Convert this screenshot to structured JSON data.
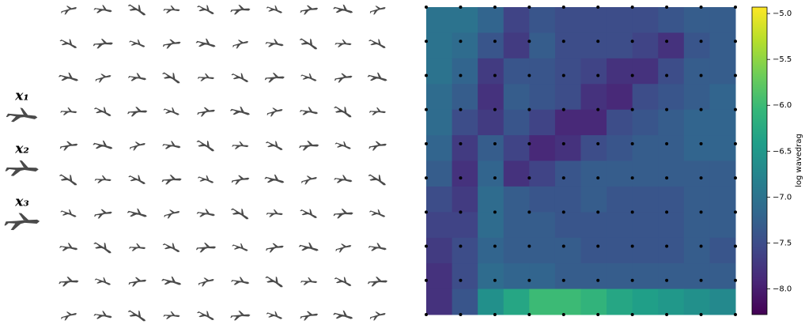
{
  "chart_data": {
    "type": "heatmap",
    "colormap": "viridis",
    "colorbar_label": "log wavedrag",
    "clim": [
      -8.28,
      -4.93
    ],
    "cticks": [
      {
        "value": -5,
        "label": "−5.0"
      },
      {
        "value": -5.5,
        "label": "−5.5"
      },
      {
        "value": -6,
        "label": "−6.0"
      },
      {
        "value": -6.5,
        "label": "−6.5"
      },
      {
        "value": -7,
        "label": "−7.0"
      },
      {
        "value": -7.5,
        "label": "−7.5"
      },
      {
        "value": -8,
        "label": "−8.0"
      }
    ],
    "sample_labels": [
      "x₁",
      "x₂",
      "x₃"
    ],
    "z": [
      [
        -7.0,
        -7.0,
        -7.2,
        -7.6,
        -7.4,
        -7.5,
        -7.5,
        -7.5,
        -7.5,
        -7.4,
        -7.3,
        -7.3
      ],
      [
        -7.0,
        -7.1,
        -7.4,
        -7.7,
        -7.3,
        -7.5,
        -7.5,
        -7.5,
        -7.6,
        -7.8,
        -7.4,
        -7.3
      ],
      [
        -7.0,
        -7.2,
        -7.7,
        -7.4,
        -7.4,
        -7.5,
        -7.6,
        -7.8,
        -7.8,
        -7.5,
        -7.3,
        -7.3
      ],
      [
        -7.1,
        -7.3,
        -7.8,
        -7.3,
        -7.4,
        -7.5,
        -7.8,
        -7.9,
        -7.5,
        -7.4,
        -7.3,
        -7.2
      ],
      [
        -7.1,
        -7.5,
        -7.7,
        -7.4,
        -7.6,
        -7.9,
        -7.9,
        -7.5,
        -7.4,
        -7.3,
        -7.2,
        -7.2
      ],
      [
        -7.2,
        -7.7,
        -7.3,
        -7.6,
        -7.9,
        -7.8,
        -7.5,
        -7.4,
        -7.3,
        -7.3,
        -7.2,
        -7.2
      ],
      [
        -7.3,
        -7.8,
        -7.2,
        -7.8,
        -7.6,
        -7.4,
        -7.3,
        -7.3,
        -7.3,
        -7.3,
        -7.3,
        -7.3
      ],
      [
        -7.5,
        -7.7,
        -7.1,
        -7.3,
        -7.4,
        -7.4,
        -7.3,
        -7.4,
        -7.4,
        -7.4,
        -7.3,
        -7.3
      ],
      [
        -7.6,
        -7.6,
        -7.1,
        -7.3,
        -7.3,
        -7.4,
        -7.4,
        -7.4,
        -7.4,
        -7.4,
        -7.3,
        -7.3
      ],
      [
        -7.7,
        -7.5,
        -7.2,
        -7.3,
        -7.3,
        -7.3,
        -7.4,
        -7.4,
        -7.4,
        -7.4,
        -7.3,
        -7.4
      ],
      [
        -7.8,
        -7.5,
        -7.1,
        -7.2,
        -7.2,
        -7.3,
        -7.3,
        -7.3,
        -7.3,
        -7.3,
        -7.3,
        -7.3
      ],
      [
        -7.8,
        -7.4,
        -6.6,
        -6.3,
        -6.0,
        -6.0,
        -6.1,
        -6.3,
        -6.4,
        -6.5,
        -6.6,
        -6.7
      ]
    ]
  }
}
